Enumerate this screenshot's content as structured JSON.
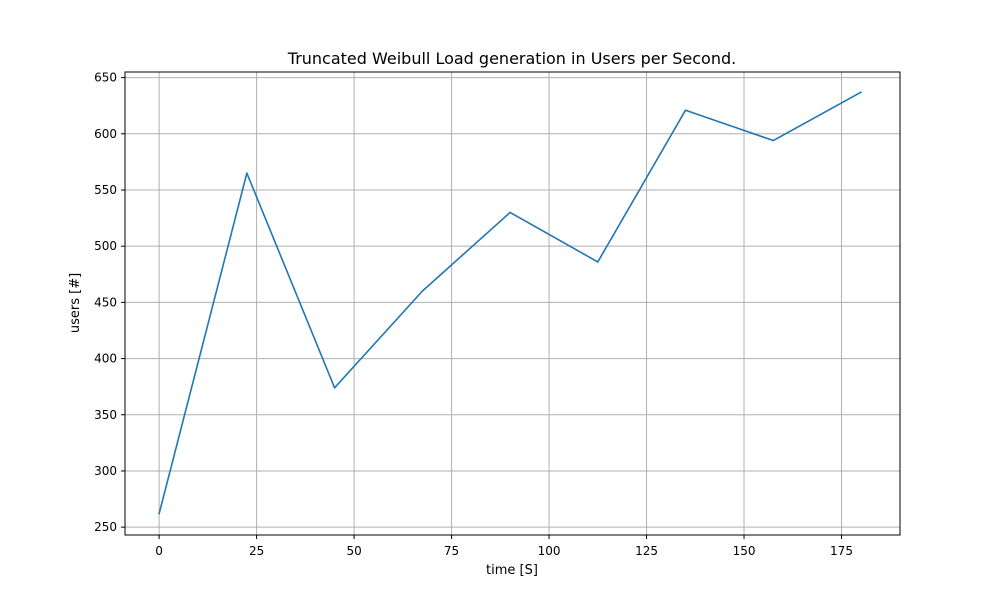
{
  "chart_data": {
    "type": "line",
    "title": "Truncated Weibull Load generation in Users per Second.",
    "xlabel": "time [S]",
    "ylabel": "users [#]",
    "xlim": [
      -8.75,
      190
    ],
    "ylim": [
      243,
      655
    ],
    "xticks": [
      0,
      25,
      50,
      75,
      100,
      125,
      150,
      175
    ],
    "yticks": [
      250,
      300,
      350,
      400,
      450,
      500,
      550,
      600,
      650
    ],
    "grid": true,
    "series": [
      {
        "color": "#1f77b4",
        "x": [
          0,
          22.5,
          45,
          67.5,
          90,
          112.5,
          135,
          157.5,
          180
        ],
        "y": [
          262,
          565,
          374,
          460,
          530,
          486,
          621,
          594,
          637
        ]
      }
    ]
  }
}
